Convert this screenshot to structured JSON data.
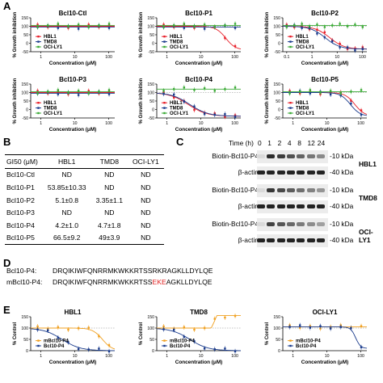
{
  "panel_letters": {
    "a": "A",
    "b": "B",
    "c": "C",
    "d": "D",
    "e": "E"
  },
  "colors": {
    "HBL1": "#e8202a",
    "TMD8": "#1a3b8c",
    "OCI-LY1": "#3aaa35",
    "mBcl10-P4": "#f0a020",
    "Bcl10-P4": "#1a3b8c"
  },
  "chart_data": [
    {
      "id": "A1",
      "type": "line",
      "title": "Bcl10-Ctl",
      "xlabel": "Concentration (μM)",
      "ylabel": "% Growth inhibition",
      "xscale": "log",
      "xlim": [
        0.5,
        150
      ],
      "ylim": [
        -50,
        150
      ],
      "yticks": [
        -50,
        0,
        50,
        100,
        150
      ],
      "xticks": [
        {
          "v": 1,
          "l": "1"
        },
        {
          "v": 10,
          "l": "10"
        },
        {
          "v": 100,
          "l": "100"
        }
      ],
      "legend": "bottom-left",
      "series": [
        {
          "name": "HBL1",
          "ec50": null,
          "top": 100,
          "bottom": 100
        },
        {
          "name": "TMD8",
          "ec50": null,
          "top": 95,
          "bottom": 95
        },
        {
          "name": "OCI-LY1",
          "ec50": null,
          "top": 105,
          "bottom": 105
        }
      ]
    },
    {
      "id": "A2",
      "type": "line",
      "title": "Bcl10-P1",
      "xlabel": "Concentration (μM)",
      "ylabel": "% Growth inhibition",
      "xscale": "log",
      "xlim": [
        0.5,
        150
      ],
      "ylim": [
        -50,
        150
      ],
      "yticks": [
        -50,
        0,
        50,
        100,
        150
      ],
      "xticks": [
        {
          "v": 1,
          "l": "1"
        },
        {
          "v": 10,
          "l": "10"
        },
        {
          "v": 100,
          "l": "100"
        }
      ],
      "legend": "bottom-left",
      "series": [
        {
          "name": "HBL1",
          "ec50": 54,
          "top": 100,
          "bottom": -40,
          "hill": 3
        },
        {
          "name": "TMD8",
          "ec50": null,
          "top": 95,
          "bottom": 95
        },
        {
          "name": "OCI-LY1",
          "ec50": null,
          "top": 105,
          "bottom": 105
        }
      ]
    },
    {
      "id": "A3",
      "type": "line",
      "title": "Bcl10-P2",
      "xlabel": "Concentration (μM)",
      "ylabel": "% Growth inhibition",
      "xscale": "log",
      "xlim": [
        0.07,
        150
      ],
      "ylim": [
        -50,
        150
      ],
      "yticks": [
        -50,
        0,
        50,
        100,
        150
      ],
      "xticks": [
        {
          "v": 0.1,
          "l": "0.1"
        },
        {
          "v": 1,
          "l": "1"
        },
        {
          "v": 10,
          "l": "10"
        },
        {
          "v": 100,
          "l": "100"
        }
      ],
      "legend": "bottom-left",
      "series": [
        {
          "name": "HBL1",
          "ec50": 5.1,
          "top": 100,
          "bottom": -35,
          "hill": 1.5
        },
        {
          "name": "TMD8",
          "ec50": 3.35,
          "top": 100,
          "bottom": -35,
          "hill": 1.5
        },
        {
          "name": "OCI-LY1",
          "ec50": null,
          "top": 105,
          "bottom": 105
        }
      ]
    },
    {
      "id": "A4",
      "type": "line",
      "title": "Bcl10-P3",
      "xlabel": "Concentration (μM)",
      "ylabel": "% Growth inhibition",
      "xscale": "log",
      "xlim": [
        0.5,
        150
      ],
      "ylim": [
        -50,
        150
      ],
      "yticks": [
        -50,
        0,
        50,
        100,
        150
      ],
      "xticks": [
        {
          "v": 1,
          "l": "1"
        },
        {
          "v": 10,
          "l": "10"
        },
        {
          "v": 100,
          "l": "100"
        }
      ],
      "legend": "bottom-left",
      "series": [
        {
          "name": "HBL1",
          "ec50": null,
          "top": 100,
          "bottom": 100
        },
        {
          "name": "TMD8",
          "ec50": null,
          "top": 95,
          "bottom": 95
        },
        {
          "name": "OCI-LY1",
          "ec50": null,
          "top": 105,
          "bottom": 105
        }
      ]
    },
    {
      "id": "A5",
      "type": "line",
      "title": "Bcl10-P4",
      "xlabel": "Concentration (μM)",
      "ylabel": "% Growth inhibition",
      "xscale": "log",
      "xlim": [
        0.5,
        150
      ],
      "ylim": [
        -50,
        150
      ],
      "yticks": [
        -50,
        0,
        50,
        100,
        150
      ],
      "xticks": [
        {
          "v": 1,
          "l": "1"
        },
        {
          "v": 10,
          "l": "10"
        },
        {
          "v": 100,
          "l": "100"
        }
      ],
      "legend": "bottom-left",
      "series": [
        {
          "name": "HBL1",
          "ec50": 4.2,
          "top": 100,
          "bottom": -40,
          "hill": 1.6
        },
        {
          "name": "TMD8",
          "ec50": 4.7,
          "top": 100,
          "bottom": -40,
          "hill": 1.6
        },
        {
          "name": "OCI-LY1",
          "ec50": null,
          "top": 120,
          "bottom": 120
        }
      ]
    },
    {
      "id": "A6",
      "type": "line",
      "title": "Bcl10-P5",
      "xlabel": "Concentration (μM)",
      "ylabel": "% Growth inhibition",
      "xscale": "log",
      "xlim": [
        0.5,
        150
      ],
      "ylim": [
        -50,
        150
      ],
      "yticks": [
        -50,
        0,
        50,
        100,
        150
      ],
      "xticks": [
        {
          "v": 1,
          "l": "1"
        },
        {
          "v": 10,
          "l": "10"
        },
        {
          "v": 100,
          "l": "100"
        }
      ],
      "legend": "bottom-left",
      "series": [
        {
          "name": "HBL1",
          "ec50": 66.5,
          "top": 100,
          "bottom": -40,
          "hill": 3
        },
        {
          "name": "TMD8",
          "ec50": 49,
          "top": 100,
          "bottom": -40,
          "hill": 3
        },
        {
          "name": "OCI-LY1",
          "ec50": null,
          "top": 105,
          "bottom": 105
        }
      ]
    },
    {
      "id": "E1",
      "type": "line",
      "title": "HBL1",
      "xlabel": "Concentration (μM)",
      "ylabel": "% Control",
      "xscale": "log",
      "xlim": [
        0.5,
        150
      ],
      "ylim": [
        0,
        150
      ],
      "yticks": [
        0,
        50,
        100,
        150
      ],
      "xticks": [
        {
          "v": 1,
          "l": "1"
        },
        {
          "v": 10,
          "l": "10"
        },
        {
          "v": 100,
          "l": "100"
        }
      ],
      "legend": "bottom-left",
      "series": [
        {
          "name": "mBcl10-P4",
          "ec50": 65,
          "top": 100,
          "bottom": 0,
          "hill": 3
        },
        {
          "name": "Bcl10-P4",
          "ec50": 4.2,
          "top": 100,
          "bottom": 0,
          "hill": 1.6
        }
      ]
    },
    {
      "id": "E2",
      "type": "line",
      "title": "TMD8",
      "xlabel": "Concentration (μM)",
      "ylabel": "% Control",
      "xscale": "log",
      "xlim": [
        0.5,
        150
      ],
      "ylim": [
        0,
        150
      ],
      "yticks": [
        0,
        50,
        100,
        150
      ],
      "xticks": [
        {
          "v": 1,
          "l": "1"
        },
        {
          "v": 10,
          "l": "10"
        },
        {
          "v": 100,
          "l": "100"
        }
      ],
      "legend": "bottom-left",
      "series": [
        {
          "name": "mBcl10-P4",
          "ec50": null,
          "top": 100,
          "bottom": 100,
          "spike": true
        },
        {
          "name": "Bcl10-P4",
          "ec50": 4.7,
          "top": 100,
          "bottom": 0,
          "hill": 1.6
        }
      ]
    },
    {
      "id": "E3",
      "type": "line",
      "title": "OCI-LY1",
      "xlabel": "Concentration (μM)",
      "ylabel": "% Control",
      "xscale": "log",
      "xlim": [
        0.5,
        150
      ],
      "ylim": [
        0,
        150
      ],
      "yticks": [
        0,
        50,
        100,
        150
      ],
      "xticks": [
        {
          "v": 1,
          "l": "1"
        },
        {
          "v": 10,
          "l": "10"
        },
        {
          "v": 100,
          "l": "100"
        }
      ],
      "legend": "bottom-left",
      "series": [
        {
          "name": "mBcl10-P4",
          "ec50": null,
          "top": 105,
          "bottom": 105
        },
        {
          "name": "Bcl10-P4",
          "ec50": 70,
          "top": 105,
          "bottom": 10,
          "hill": 6
        }
      ]
    }
  ],
  "gi50_table": {
    "headers": [
      "GI50 (μM)",
      "HBL1",
      "TMD8",
      "OCI-LY1"
    ],
    "rows": [
      [
        "Bcl10-Ctl",
        "ND",
        "ND",
        "ND"
      ],
      [
        "Bcl10-P1",
        "53.85±10.33",
        "ND",
        "ND"
      ],
      [
        "Bcl10-P2",
        "5.1±0.8",
        "3.35±1.1",
        "ND"
      ],
      [
        "Bcl10-P3",
        "ND",
        "ND",
        "ND"
      ],
      [
        "Bcl10-P4",
        "4.2±1.0",
        "4.7±1.8",
        "ND"
      ],
      [
        "Bcl10-P5",
        "66.5±9.2",
        "49±3.9",
        "ND"
      ]
    ]
  },
  "western": {
    "time_label": "Time (h)",
    "times": [
      "0",
      "1",
      "2",
      "4",
      "8",
      "12",
      "24"
    ],
    "groups": [
      {
        "cell": "HBL1",
        "rows": [
          {
            "label": "Biotin-Bcl10-P4",
            "marker": "10 kDa"
          },
          {
            "label": "β-actin",
            "marker": "40 kDa"
          }
        ]
      },
      {
        "cell": "TMD8",
        "rows": [
          {
            "label": "Biotin-Bcl10-P4",
            "marker": "10 kDa"
          },
          {
            "label": "β-actin",
            "marker": "40 kDa"
          }
        ]
      },
      {
        "cell": "OCI-LY1",
        "rows": [
          {
            "label": "Biotin-Bcl10-P4",
            "marker": "10 kDa"
          },
          {
            "label": "β-actin",
            "marker": "40 kDa"
          }
        ]
      }
    ]
  },
  "sequences": [
    {
      "label": "Bcl10-P4:",
      "pre": "DRQIKIWFQNRRMKWKKRTSS",
      "mut": "",
      "post": "RKRAGKLLDYLQE"
    },
    {
      "label": "mBcl10-P4:",
      "pre": "DRQIKIWFQNRRMKWKKRTSS",
      "mut": "EKE",
      "post": "AGKLLDYLQE"
    }
  ]
}
